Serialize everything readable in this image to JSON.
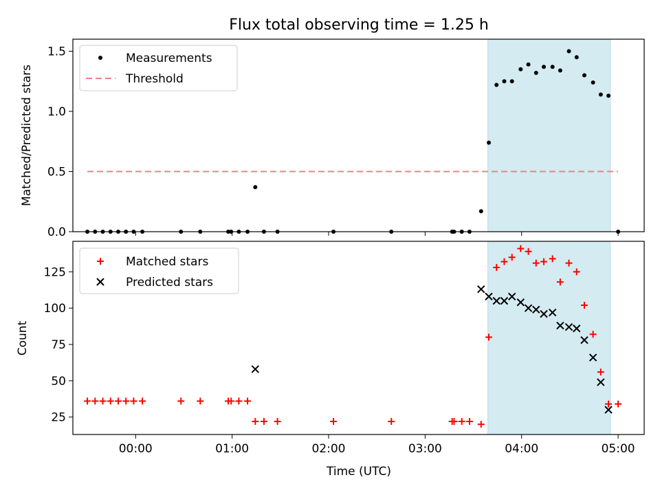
{
  "chart_data": {
    "type": "scatter",
    "title": "Flux total observing time = 1.25 h",
    "xlabel": "Time (UTC)",
    "xlim": [
      -0.65,
      5.27
    ],
    "x_ticks": [
      0,
      1,
      2,
      3,
      4,
      5
    ],
    "x_tick_labels": [
      "00:00",
      "01:00",
      "02:00",
      "03:00",
      "04:00",
      "05:00"
    ],
    "highlight_span": [
      3.65,
      4.92
    ],
    "highlight_color": "#d4ebf1",
    "top": {
      "ylabel": "Matched/Predicted stars",
      "ylim": [
        0,
        1.6
      ],
      "y_ticks": [
        0,
        0.5,
        1.0,
        1.5
      ],
      "y_tick_labels": [
        "0.0",
        "0.5",
        "1.0",
        "1.5"
      ],
      "legend_position": "upper-left",
      "threshold": {
        "name": "Threshold",
        "value": 0.5,
        "x_range": [
          -0.5,
          5.0
        ],
        "color": "#f08080"
      },
      "measurements": {
        "name": "Measurements",
        "color": "#000000",
        "points": [
          [
            -0.5,
            0
          ],
          [
            -0.42,
            0
          ],
          [
            -0.34,
            0
          ],
          [
            -0.26,
            0
          ],
          [
            -0.18,
            0
          ],
          [
            -0.1,
            0
          ],
          [
            -0.02,
            0
          ],
          [
            0.07,
            0
          ],
          [
            0.47,
            0
          ],
          [
            0.67,
            0
          ],
          [
            0.96,
            0
          ],
          [
            0.99,
            0
          ],
          [
            1.07,
            0
          ],
          [
            1.16,
            0
          ],
          [
            1.24,
            0.37
          ],
          [
            1.33,
            0
          ],
          [
            1.47,
            0
          ],
          [
            2.05,
            0
          ],
          [
            2.65,
            0
          ],
          [
            3.28,
            0
          ],
          [
            3.3,
            0
          ],
          [
            3.38,
            0
          ],
          [
            3.46,
            0
          ],
          [
            3.58,
            0.17
          ],
          [
            3.66,
            0.74
          ],
          [
            3.74,
            1.22
          ],
          [
            3.82,
            1.25
          ],
          [
            3.9,
            1.25
          ],
          [
            3.99,
            1.35
          ],
          [
            4.07,
            1.39
          ],
          [
            4.15,
            1.32
          ],
          [
            4.23,
            1.37
          ],
          [
            4.32,
            1.37
          ],
          [
            4.4,
            1.34
          ],
          [
            4.49,
            1.5
          ],
          [
            4.57,
            1.45
          ],
          [
            4.65,
            1.3
          ],
          [
            4.74,
            1.24
          ],
          [
            4.82,
            1.14
          ],
          [
            4.9,
            1.13
          ],
          [
            5.0,
            0
          ]
        ]
      }
    },
    "bottom": {
      "ylabel": "Count",
      "ylim": [
        13,
        146
      ],
      "y_ticks": [
        25,
        50,
        75,
        100,
        125
      ],
      "y_tick_labels": [
        "25",
        "50",
        "75",
        "100",
        "125"
      ],
      "legend_position": "upper-left",
      "series": [
        {
          "name": "Matched stars",
          "marker": "plus",
          "color": "#ff0000",
          "points": [
            [
              -0.5,
              36
            ],
            [
              -0.42,
              36
            ],
            [
              -0.34,
              36
            ],
            [
              -0.26,
              36
            ],
            [
              -0.18,
              36
            ],
            [
              -0.1,
              36
            ],
            [
              -0.02,
              36
            ],
            [
              0.07,
              36
            ],
            [
              0.47,
              36
            ],
            [
              0.67,
              36
            ],
            [
              0.96,
              36
            ],
            [
              0.99,
              36
            ],
            [
              1.07,
              36
            ],
            [
              1.16,
              36
            ],
            [
              1.24,
              22
            ],
            [
              1.33,
              22
            ],
            [
              1.47,
              22
            ],
            [
              2.05,
              22
            ],
            [
              2.65,
              22
            ],
            [
              3.28,
              22
            ],
            [
              3.3,
              22
            ],
            [
              3.38,
              22
            ],
            [
              3.46,
              22
            ],
            [
              3.58,
              20
            ],
            [
              3.66,
              80
            ],
            [
              3.74,
              128
            ],
            [
              3.82,
              132
            ],
            [
              3.9,
              135
            ],
            [
              3.99,
              141
            ],
            [
              4.07,
              139
            ],
            [
              4.15,
              131
            ],
            [
              4.23,
              132
            ],
            [
              4.32,
              134
            ],
            [
              4.4,
              118
            ],
            [
              4.49,
              131
            ],
            [
              4.57,
              125
            ],
            [
              4.65,
              102
            ],
            [
              4.74,
              82
            ],
            [
              4.82,
              56
            ],
            [
              4.9,
              34
            ],
            [
              5.0,
              34
            ]
          ]
        },
        {
          "name": "Predicted stars",
          "marker": "x",
          "color": "#000000",
          "points": [
            [
              1.24,
              58
            ],
            [
              3.58,
              113
            ],
            [
              3.66,
              108
            ],
            [
              3.74,
              105
            ],
            [
              3.82,
              105
            ],
            [
              3.9,
              108
            ],
            [
              3.99,
              104
            ],
            [
              4.07,
              100
            ],
            [
              4.15,
              99
            ],
            [
              4.23,
              96
            ],
            [
              4.32,
              97
            ],
            [
              4.4,
              88
            ],
            [
              4.49,
              87
            ],
            [
              4.57,
              86
            ],
            [
              4.65,
              78
            ],
            [
              4.74,
              66
            ],
            [
              4.82,
              49
            ],
            [
              4.9,
              30
            ]
          ]
        }
      ]
    }
  }
}
